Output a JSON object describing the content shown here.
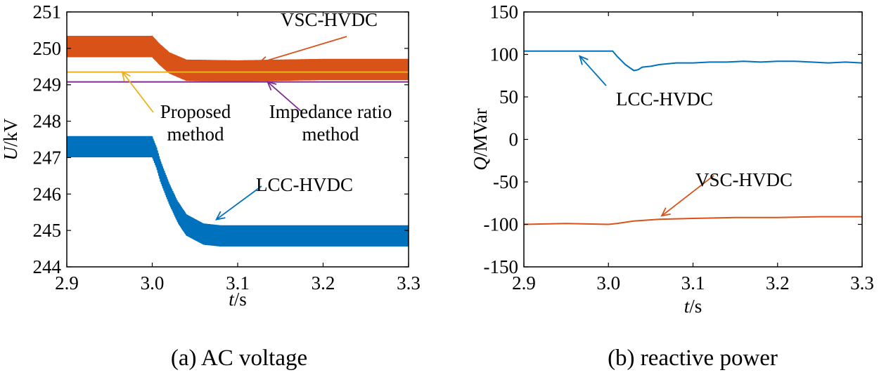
{
  "chart_data": [
    {
      "id": "a",
      "type": "line",
      "caption": "(a) AC voltage",
      "xlabel_var": "t",
      "xlabel_unit": "/s",
      "ylabel_var": "U",
      "ylabel_unit": "/kV",
      "xlim": [
        2.9,
        3.3
      ],
      "ylim": [
        244,
        251
      ],
      "xticks": [
        "2.9",
        "3.0",
        "3.1",
        "3.2",
        "3.3"
      ],
      "yticks": [
        "244",
        "245",
        "246",
        "247",
        "248",
        "249",
        "250",
        "251"
      ],
      "series": [
        {
          "name": "VSC-HVDC",
          "color": "#D95319",
          "x": [
            2.9,
            3.0,
            3.008,
            3.02,
            3.04,
            3.1,
            3.2,
            3.3
          ],
          "y": [
            250.05,
            250.05,
            249.85,
            249.6,
            249.4,
            249.38,
            249.42,
            249.42
          ],
          "osc_amplitude": 0.28
        },
        {
          "name": "LCC-HVDC",
          "color": "#0072BD",
          "x": [
            2.9,
            3.0,
            3.005,
            3.01,
            3.02,
            3.03,
            3.04,
            3.06,
            3.08,
            3.1,
            3.2,
            3.3
          ],
          "y": [
            247.3,
            247.3,
            247.0,
            246.6,
            246.0,
            245.5,
            245.15,
            244.9,
            244.85,
            244.85,
            244.85,
            244.85
          ],
          "osc_amplitude": 0.28
        },
        {
          "name": "Proposed method",
          "color": "#EDB120",
          "x": [
            2.9,
            3.3
          ],
          "y": [
            249.35,
            249.35
          ]
        },
        {
          "name": "Impedance ratio method",
          "color": "#7E2F8E",
          "x": [
            2.9,
            3.3
          ],
          "y": [
            249.08,
            249.08
          ]
        }
      ],
      "annotations": [
        {
          "lines": [
            "VSC-HVDC"
          ],
          "color": "#D95319",
          "point": [
            3.125,
            249.6
          ]
        },
        {
          "lines": [
            "LCC-HVDC"
          ],
          "color": "#0072BD",
          "point": [
            3.075,
            245.3
          ]
        },
        {
          "lines": [
            "Proposed",
            "method"
          ],
          "color": "#EDB120",
          "point": [
            2.965,
            249.35
          ]
        },
        {
          "lines": [
            "Impedance ratio",
            "method"
          ],
          "color": "#7E2F8E",
          "point": [
            3.135,
            249.08
          ]
        }
      ]
    },
    {
      "id": "b",
      "type": "line",
      "caption": "(b) reactive power",
      "xlabel_var": "t",
      "xlabel_unit": "/s",
      "ylabel_var": "Q",
      "ylabel_unit": "/MVar",
      "xlim": [
        2.9,
        3.3
      ],
      "ylim": [
        -150,
        150
      ],
      "xticks": [
        "2.9",
        "3.0",
        "3.1",
        "3.2",
        "3.3"
      ],
      "yticks": [
        "-150",
        "-100",
        "-50",
        "0",
        "50",
        "100",
        "150"
      ],
      "series": [
        {
          "name": "LCC-HVDC",
          "color": "#0072BD",
          "x": [
            2.9,
            3.0,
            3.005,
            3.01,
            3.02,
            3.03,
            3.035,
            3.04,
            3.05,
            3.06,
            3.08,
            3.1,
            3.12,
            3.14,
            3.16,
            3.18,
            3.2,
            3.22,
            3.24,
            3.26,
            3.28,
            3.3
          ],
          "y": [
            104,
            104,
            104,
            98,
            88,
            81,
            82,
            85,
            86,
            88,
            90,
            90,
            91,
            91,
            92,
            91,
            92,
            92,
            91,
            90,
            91,
            90
          ]
        },
        {
          "name": "VSC-HVDC",
          "color": "#D95319",
          "x": [
            2.9,
            2.95,
            3.0,
            3.01,
            3.03,
            3.06,
            3.1,
            3.15,
            3.2,
            3.25,
            3.3
          ],
          "y": [
            -100,
            -99,
            -100,
            -99,
            -96,
            -94,
            -93,
            -92,
            -92,
            -91,
            -91
          ]
        }
      ],
      "annotations": [
        {
          "lines": [
            "LCC-HVDC"
          ],
          "color": "#0072BD",
          "point": [
            2.966,
            98
          ]
        },
        {
          "lines": [
            "VSC-HVDC"
          ],
          "color": "#D95319",
          "point": [
            3.063,
            -90
          ]
        }
      ]
    }
  ]
}
